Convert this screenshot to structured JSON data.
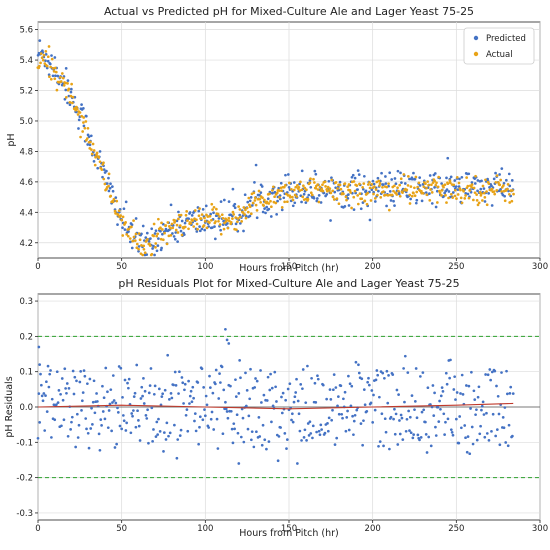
{
  "chart_data": [
    {
      "type": "scatter",
      "title": "Actual vs Predicted pH for Mixed-Culture Ale and Lager Yeast 75-25",
      "xlabel": "Hours from Pitch (hr)",
      "ylabel": "pH",
      "xlim": [
        0,
        300
      ],
      "ylim": [
        4.1,
        5.65
      ],
      "xticks": [
        0,
        50,
        100,
        150,
        200,
        250,
        300
      ],
      "yticks": [
        4.2,
        4.4,
        4.6,
        4.8,
        5.0,
        5.2,
        5.4,
        5.6
      ],
      "grid": true,
      "legend_position": "top-right",
      "legend": [
        "Predicted",
        "Actual"
      ],
      "series": [
        {
          "name": "Predicted",
          "color": "#4472c4",
          "marker": "dot",
          "x_start": 0,
          "x_end": 284,
          "x_step": 0.5,
          "trend_x": [
            0,
            5,
            10,
            20,
            30,
            40,
            50,
            55,
            60,
            65,
            70,
            80,
            90,
            100,
            110,
            120,
            125,
            130,
            140,
            150,
            200,
            250,
            284
          ],
          "trend_y": [
            5.45,
            5.42,
            5.35,
            5.17,
            4.92,
            4.62,
            4.36,
            4.26,
            4.2,
            4.19,
            4.23,
            4.3,
            4.33,
            4.35,
            4.36,
            4.38,
            4.42,
            4.48,
            4.52,
            4.55,
            4.55,
            4.56,
            4.56
          ],
          "spread": 0.06
        },
        {
          "name": "Actual",
          "color": "#e8a317",
          "marker": "dot",
          "x_start": 0,
          "x_end": 284,
          "x_step": 0.5,
          "trend_x": [
            0,
            5,
            10,
            20,
            30,
            40,
            50,
            55,
            60,
            65,
            70,
            80,
            90,
            100,
            110,
            120,
            125,
            130,
            140,
            150,
            200,
            250,
            284
          ],
          "trend_y": [
            5.36,
            5.4,
            5.33,
            5.16,
            4.91,
            4.61,
            4.35,
            4.25,
            4.19,
            4.18,
            4.22,
            4.29,
            4.32,
            4.34,
            4.35,
            4.37,
            4.41,
            4.47,
            4.51,
            4.54,
            4.54,
            4.55,
            4.55
          ],
          "spread": 0.045
        }
      ]
    },
    {
      "type": "scatter",
      "title": "pH Residuals Plot for Mixed-Culture Ale and Lager Yeast 75-25",
      "xlabel": "Hours from Pitch (hr)",
      "ylabel": "pH Residuals",
      "xlim": [
        0,
        300
      ],
      "ylim": [
        -0.32,
        0.32
      ],
      "xticks": [
        0,
        50,
        100,
        150,
        200,
        250,
        300
      ],
      "yticks": [
        -0.3,
        -0.2,
        -0.1,
        0.0,
        0.1,
        0.2,
        0.3
      ],
      "grid": true,
      "series": [
        {
          "name": "Residuals",
          "color": "#4472c4",
          "marker": "dot",
          "x_start": 0,
          "x_end": 284,
          "x_step": 0.5,
          "center": 0.0,
          "spread": 0.11,
          "highlights": [
            [
              0.5,
              0.17
            ],
            [
              1,
              0.12
            ],
            [
              112,
              0.22
            ],
            [
              113,
              0.19
            ],
            [
              114,
              0.18
            ],
            [
              120,
              -0.16
            ]
          ]
        }
      ],
      "reference_lines": [
        {
          "name": "zero",
          "y": 0.0,
          "color": "#555555",
          "style": "solid"
        },
        {
          "name": "upper",
          "y": 0.2,
          "color": "#2ca02c",
          "style": "dashed"
        },
        {
          "name": "lower",
          "y": -0.2,
          "color": "#2ca02c",
          "style": "dashed"
        }
      ],
      "trend_line": {
        "name": "smoothed residual",
        "color": "#c0392b",
        "x": [
          0,
          50,
          100,
          150,
          200,
          250,
          284
        ],
        "y": [
          0.0,
          0.005,
          0.0,
          -0.005,
          0.0,
          0.005,
          0.01
        ]
      }
    }
  ]
}
